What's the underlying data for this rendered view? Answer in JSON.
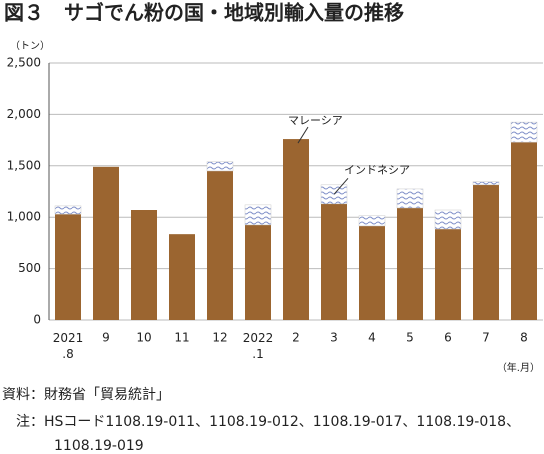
{
  "chart_data": {
    "type": "stacked-bar",
    "title": "図３　サゴでん粉の国・地域別輸入量の推移",
    "y_unit": "（トン）",
    "x_unit": "（年.月）",
    "categories": [
      "2021\n.8",
      "9",
      "10",
      "11",
      "12",
      "2022\n.1",
      "2",
      "3",
      "4",
      "5",
      "6",
      "7",
      "8"
    ],
    "series": [
      {
        "name": "マレーシア",
        "color": "#9b6530",
        "values": [
          1030,
          1490,
          1070,
          835,
          1450,
          925,
          1760,
          1130,
          915,
          1090,
          885,
          1315,
          1730
        ]
      },
      {
        "name": "インドネシア",
        "color": "#7f8fc8",
        "values": [
          80,
          0,
          0,
          0,
          90,
          195,
          0,
          185,
          100,
          185,
          185,
          30,
          195
        ]
      }
    ],
    "ylim": [
      0,
      2500
    ],
    "yticks": [
      0,
      500,
      {
        "value": 1000,
        "label": "1,000"
      },
      {
        "value": 1500,
        "label": "1,500"
      },
      {
        "value": 2000,
        "label": "2,000"
      },
      {
        "value": 2500,
        "label": "2,500"
      }
    ],
    "grid": true
  },
  "notes": [
    "資料：財務省「貿易統計」",
    "注：HSコード1108.19-011、1108.19-012、1108.19-017、1108.19-018、1108.19-019"
  ]
}
